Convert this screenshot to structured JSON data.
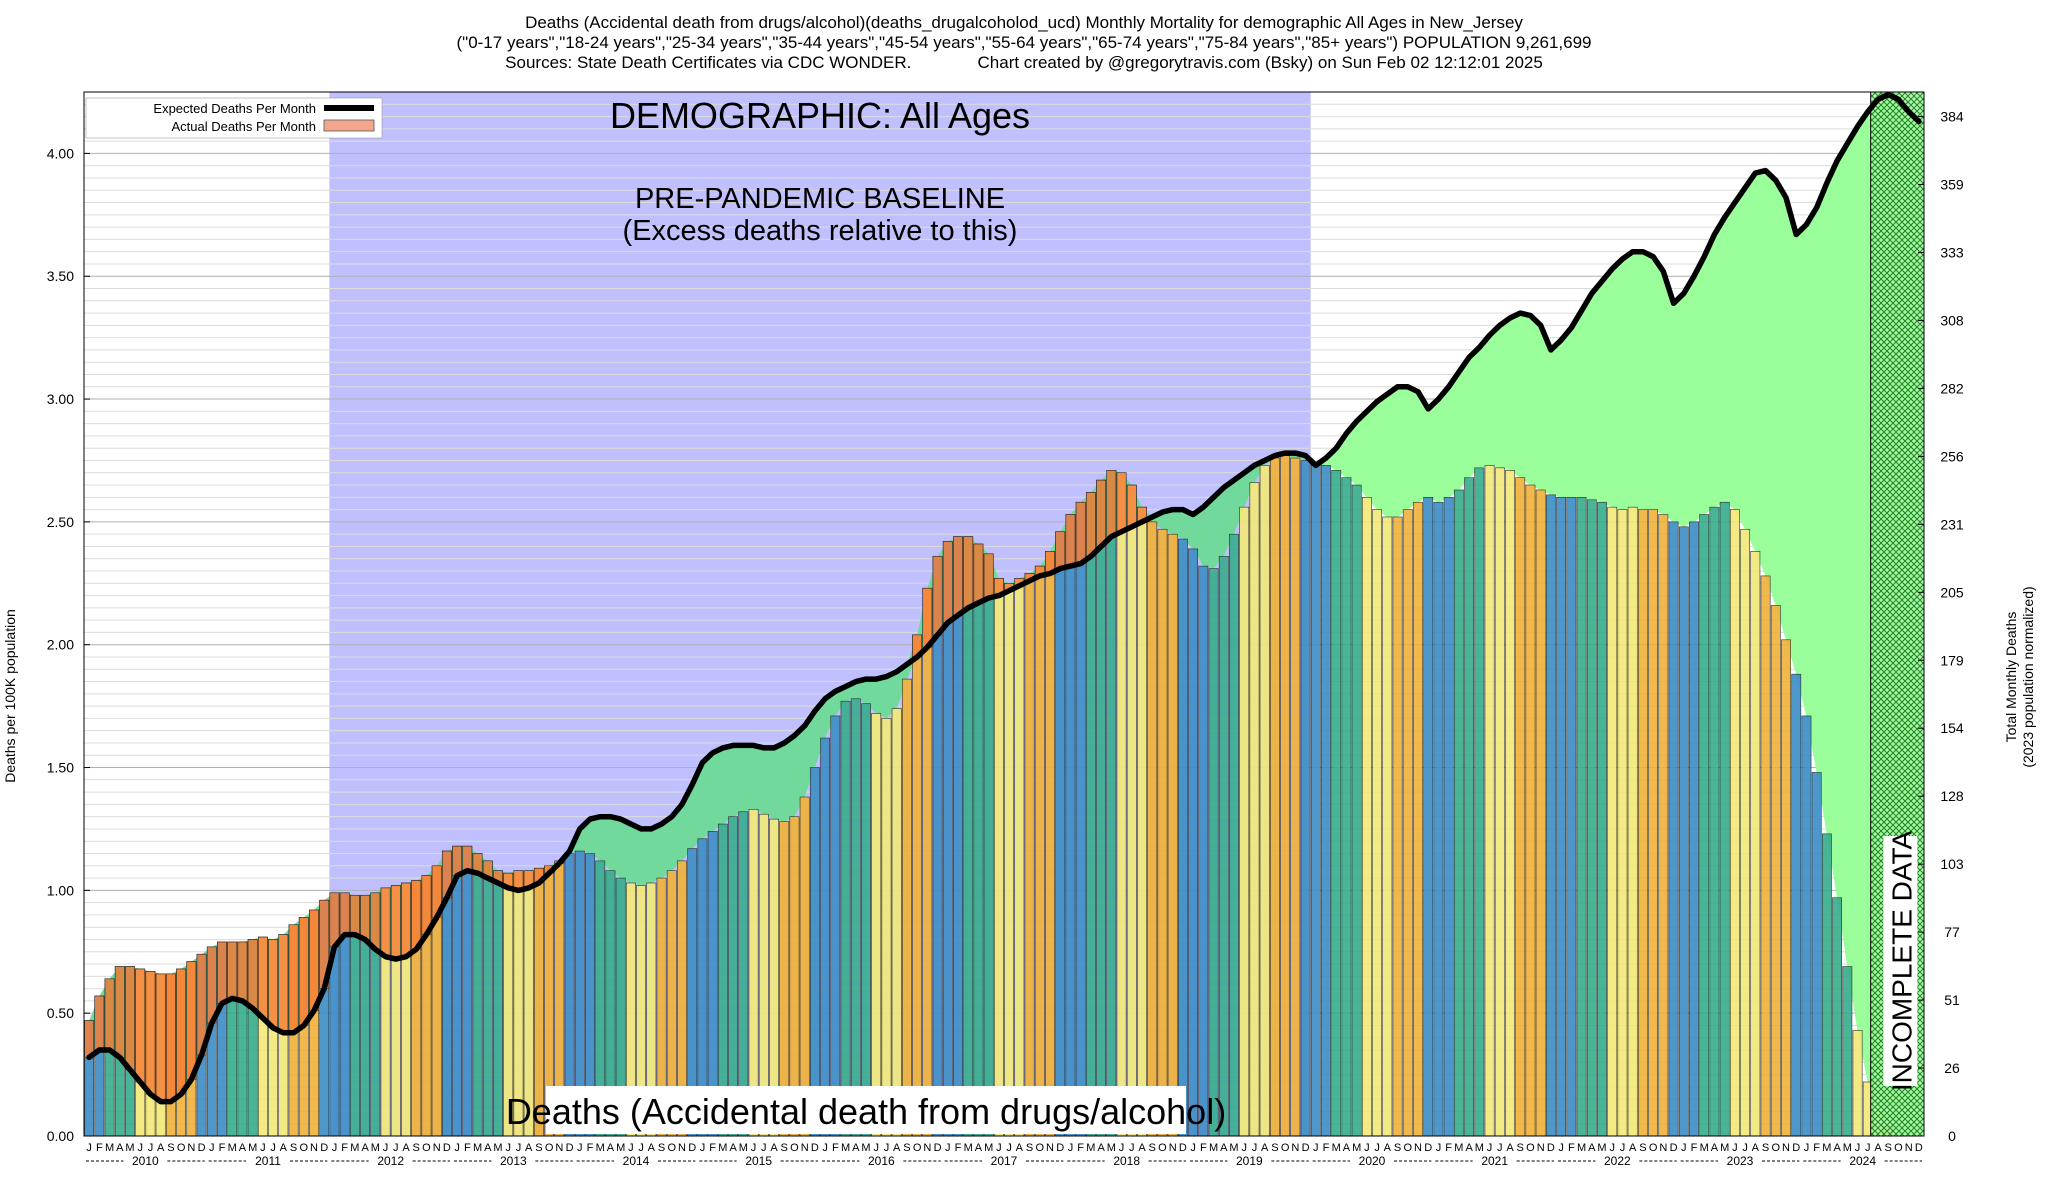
{
  "header": {
    "line1": "Deaths (Accidental death from drugs/alcohol)(deaths_drugalcoholod_ucd) Monthly Mortality for demographic All Ages in New_Jersey",
    "line2": "(\"0-17 years\",\"18-24 years\",\"25-34 years\",\"35-44 years\",\"45-54 years\",\"55-64 years\",\"65-74 years\",\"75-84 years\",\"85+ years\") POPULATION 9,261,699",
    "line3": "Sources: State Death Certificates via CDC WONDER.              Chart created by @gregorytravis.com (Bsky) on Sun Feb 02 12:12:01 2025"
  },
  "chart_data": {
    "type": "bar",
    "title": "Deaths (Accidental death from drugs/alcohol)(deaths_drugalcoholod_ucd) Monthly Mortality for demographic All Ages in New_Jersey",
    "ylabel": "Deaths per 100K population",
    "y2label_line1": "Total Monthly Deaths",
    "y2label_line2": "(2023 population normalized)",
    "ylim": [
      0,
      4.25
    ],
    "yticks": [
      "0.00",
      "0.50",
      "1.00",
      "1.50",
      "2.00",
      "2.50",
      "3.00",
      "3.50",
      "4.00"
    ],
    "y2ticks": [
      "0",
      "26",
      "51",
      "77",
      "103",
      "128",
      "154",
      "179",
      "205",
      "231",
      "256",
      "282",
      "308",
      "333",
      "359",
      "384"
    ],
    "month_letters": [
      "J",
      "F",
      "M",
      "A",
      "M",
      "J",
      "J",
      "A",
      "S",
      "O",
      "N",
      "D"
    ],
    "years": [
      "2010",
      "2011",
      "2012",
      "2013",
      "2014",
      "2015",
      "2016",
      "2017",
      "2018",
      "2019",
      "2020",
      "2021",
      "2022",
      "2023",
      "2024"
    ],
    "legend": {
      "expected": "Expected Deaths Per Month",
      "actual": "Actual Deaths Per Month",
      "position": "top-left"
    },
    "annotations": {
      "demographic": "DEMOGRAPHIC: All Ages",
      "baseline_line1": "PRE-PANDEMIC BASELINE",
      "baseline_line2": "(Excess deaths relative to this)",
      "bottom_label": "Deaths (Accidental death from drugs/alcohol)",
      "incomplete": "INCOMPLETE DATA"
    },
    "baseline_period": [
      "2012-01",
      "2019-12"
    ],
    "incomplete_from": "2024-07",
    "colors": {
      "baseline_region": "#c0c0ff",
      "excess_region": "#9aff9a",
      "overlap_region": "#72d99c",
      "actual_above_expected": "#f6813a",
      "expected_line": "#000000",
      "legend_actual_swatch": "#f4a68c",
      "season_winter": "#3f8fc6",
      "season_spring": "#3aae8e",
      "season_summer": "#f2e97a",
      "season_fall": "#f0b23c"
    },
    "actual": [
      0.47,
      0.57,
      0.64,
      0.69,
      0.69,
      0.68,
      0.67,
      0.66,
      0.66,
      0.68,
      0.71,
      0.74,
      0.77,
      0.79,
      0.79,
      0.79,
      0.8,
      0.81,
      0.8,
      0.82,
      0.86,
      0.89,
      0.92,
      0.96,
      0.99,
      0.99,
      0.98,
      0.98,
      0.99,
      1.01,
      1.02,
      1.03,
      1.04,
      1.06,
      1.1,
      1.16,
      1.18,
      1.18,
      1.15,
      1.12,
      1.08,
      1.07,
      1.08,
      1.08,
      1.09,
      1.1,
      1.12,
      1.15,
      1.16,
      1.15,
      1.12,
      1.08,
      1.05,
      1.03,
      1.02,
      1.03,
      1.05,
      1.08,
      1.12,
      1.17,
      1.21,
      1.24,
      1.27,
      1.3,
      1.32,
      1.33,
      1.31,
      1.29,
      1.28,
      1.3,
      1.38,
      1.5,
      1.62,
      1.71,
      1.77,
      1.78,
      1.76,
      1.72,
      1.7,
      1.74,
      1.86,
      2.04,
      2.23,
      2.36,
      2.42,
      2.44,
      2.44,
      2.41,
      2.37,
      2.27,
      2.25,
      2.27,
      2.29,
      2.32,
      2.38,
      2.46,
      2.53,
      2.58,
      2.62,
      2.67,
      2.71,
      2.7,
      2.65,
      2.56,
      2.5,
      2.47,
      2.45,
      2.43,
      2.39,
      2.32,
      2.31,
      2.36,
      2.45,
      2.56,
      2.66,
      2.73,
      2.76,
      2.77,
      2.76,
      2.75,
      2.74,
      2.73,
      2.71,
      2.68,
      2.65,
      2.6,
      2.55,
      2.52,
      2.52,
      2.55,
      2.58,
      2.6,
      2.58,
      2.6,
      2.63,
      2.68,
      2.72,
      2.73,
      2.72,
      2.71,
      2.68,
      2.65,
      2.63,
      2.61,
      2.6,
      2.6,
      2.6,
      2.59,
      2.58,
      2.56,
      2.55,
      2.56,
      2.55,
      2.55,
      2.53,
      2.5,
      2.48,
      2.5,
      2.53,
      2.56,
      2.58,
      2.55,
      2.47,
      2.38,
      2.28,
      2.16,
      2.02,
      1.88,
      1.71,
      1.48,
      1.23,
      0.97,
      0.69,
      0.43,
      0.22,
      0.1,
      0.04,
      0.0,
      0.0,
      0.0
    ],
    "expected": [
      0.32,
      0.35,
      0.35,
      0.32,
      0.27,
      0.22,
      0.17,
      0.14,
      0.14,
      0.17,
      0.23,
      0.33,
      0.46,
      0.54,
      0.56,
      0.55,
      0.52,
      0.48,
      0.44,
      0.42,
      0.42,
      0.45,
      0.51,
      0.6,
      0.77,
      0.82,
      0.82,
      0.8,
      0.76,
      0.73,
      0.72,
      0.73,
      0.76,
      0.82,
      0.89,
      0.97,
      1.06,
      1.08,
      1.07,
      1.05,
      1.03,
      1.01,
      1.0,
      1.01,
      1.03,
      1.07,
      1.11,
      1.16,
      1.25,
      1.29,
      1.3,
      1.3,
      1.29,
      1.27,
      1.25,
      1.25,
      1.27,
      1.3,
      1.35,
      1.43,
      1.52,
      1.56,
      1.58,
      1.59,
      1.59,
      1.59,
      1.58,
      1.58,
      1.6,
      1.63,
      1.67,
      1.73,
      1.78,
      1.81,
      1.83,
      1.85,
      1.86,
      1.86,
      1.87,
      1.89,
      1.92,
      1.95,
      1.99,
      2.04,
      2.09,
      2.12,
      2.15,
      2.17,
      2.19,
      2.2,
      2.22,
      2.24,
      2.26,
      2.28,
      2.29,
      2.31,
      2.32,
      2.33,
      2.36,
      2.4,
      2.44,
      2.46,
      2.48,
      2.5,
      2.52,
      2.54,
      2.55,
      2.55,
      2.53,
      2.56,
      2.6,
      2.64,
      2.67,
      2.7,
      2.73,
      2.75,
      2.77,
      2.78,
      2.78,
      2.77,
      2.73,
      2.76,
      2.8,
      2.86,
      2.91,
      2.95,
      2.99,
      3.02,
      3.05,
      3.05,
      3.03,
      2.96,
      3.0,
      3.05,
      3.11,
      3.17,
      3.21,
      3.26,
      3.3,
      3.33,
      3.35,
      3.34,
      3.3,
      3.2,
      3.24,
      3.29,
      3.36,
      3.43,
      3.48,
      3.53,
      3.57,
      3.6,
      3.6,
      3.58,
      3.52,
      3.39,
      3.43,
      3.5,
      3.58,
      3.67,
      3.74,
      3.8,
      3.86,
      3.92,
      3.93,
      3.89,
      3.82,
      3.67,
      3.71,
      3.78,
      3.88,
      3.97,
      4.04,
      4.11,
      4.17,
      4.22,
      4.24,
      4.22,
      4.17,
      4.13
    ]
  }
}
